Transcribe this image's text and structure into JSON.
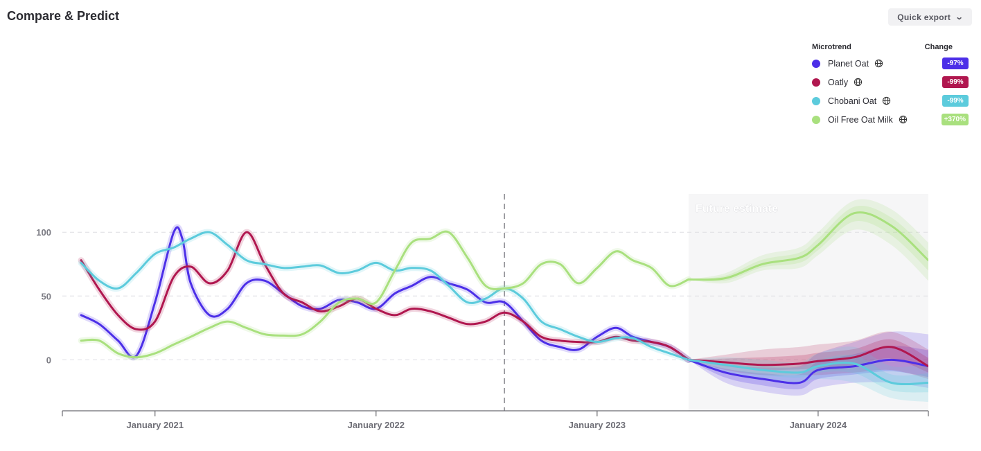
{
  "page": {
    "title": "Compare & Predict"
  },
  "toolbar": {
    "export_label": "Quick export"
  },
  "legend": {
    "microtrend_header": "Microtrend",
    "change_header": "Change",
    "items": [
      {
        "label": "Planet Oat",
        "change": "-97%",
        "color": "#4c2fe8"
      },
      {
        "label": "Oatly",
        "change": "-99%",
        "color": "#b0174f"
      },
      {
        "label": "Chobani Oat",
        "change": "-99%",
        "color": "#5ccbdc"
      },
      {
        "label": "Oil Free Oat Milk",
        "change": "+370%",
        "color": "#a9e07e"
      }
    ]
  },
  "chart_data": {
    "type": "line",
    "title": "",
    "xlabel": "",
    "ylabel": "",
    "xlim": [
      "2020-08-01",
      "2024-07-01"
    ],
    "ylim": [
      -40,
      130
    ],
    "yticks": [
      0,
      50,
      100
    ],
    "xtick_labels": [
      "January 2021",
      "January 2022",
      "January 2023",
      "January 2024"
    ],
    "xtick_dates": [
      "2021-01-01",
      "2022-01-01",
      "2023-01-01",
      "2024-01-01"
    ],
    "grid": "horizontal dashed",
    "divider_date": "2022-08-01",
    "forecast_start": "2023-06-01",
    "forecast_label": "Future estimate",
    "series": [
      {
        "name": "Planet Oat",
        "color": "#4c2fe8",
        "x": [
          "2020-09-01",
          "2020-10-01",
          "2020-11-01",
          "2020-12-01",
          "2021-01-01",
          "2021-02-01",
          "2021-02-15",
          "2021-03-01",
          "2021-04-01",
          "2021-05-01",
          "2021-06-01",
          "2021-07-01",
          "2021-08-01",
          "2021-09-01",
          "2021-10-01",
          "2021-11-01",
          "2021-12-01",
          "2022-01-01",
          "2022-02-01",
          "2022-03-01",
          "2022-04-01",
          "2022-05-01",
          "2022-06-01",
          "2022-07-01",
          "2022-08-01",
          "2022-09-01",
          "2022-10-01",
          "2022-11-01",
          "2022-12-01",
          "2023-01-01",
          "2023-02-01",
          "2023-03-01",
          "2023-04-01",
          "2023-05-01",
          "2023-06-01"
        ],
        "y": [
          35,
          28,
          15,
          3,
          45,
          100,
          95,
          60,
          35,
          40,
          60,
          62,
          52,
          42,
          40,
          47,
          45,
          40,
          52,
          58,
          65,
          60,
          55,
          45,
          45,
          30,
          15,
          10,
          8,
          18,
          25,
          18,
          14,
          10,
          0
        ],
        "forecast": {
          "x": [
            "2023-06-01",
            "2023-08-01",
            "2023-10-01",
            "2023-12-01",
            "2024-01-01",
            "2024-03-01",
            "2024-05-01",
            "2024-07-01"
          ],
          "y": [
            0,
            -10,
            -15,
            -18,
            -8,
            -5,
            0,
            -5
          ],
          "lower": [
            0,
            -18,
            -25,
            -28,
            -22,
            -18,
            -18,
            -22
          ],
          "upper": [
            0,
            -4,
            -6,
            -5,
            5,
            14,
            22,
            20
          ]
        }
      },
      {
        "name": "Oatly",
        "color": "#b0174f",
        "x": [
          "2020-09-01",
          "2020-10-01",
          "2020-11-01",
          "2020-12-01",
          "2021-01-01",
          "2021-02-01",
          "2021-03-01",
          "2021-04-01",
          "2021-05-01",
          "2021-06-01",
          "2021-07-01",
          "2021-08-01",
          "2021-09-01",
          "2021-10-01",
          "2021-11-01",
          "2021-12-01",
          "2022-01-01",
          "2022-02-01",
          "2022-03-01",
          "2022-04-01",
          "2022-05-01",
          "2022-06-01",
          "2022-07-01",
          "2022-08-01",
          "2022-09-01",
          "2022-10-01",
          "2022-11-01",
          "2022-12-01",
          "2023-01-01",
          "2023-02-01",
          "2023-03-01",
          "2023-04-01",
          "2023-05-01",
          "2023-06-01"
        ],
        "y": [
          78,
          55,
          35,
          24,
          30,
          65,
          73,
          60,
          70,
          100,
          75,
          52,
          45,
          38,
          42,
          48,
          40,
          35,
          40,
          38,
          33,
          28,
          30,
          37,
          30,
          18,
          15,
          14,
          14,
          18,
          15,
          14,
          10,
          0
        ],
        "forecast": {
          "x": [
            "2023-06-01",
            "2023-08-01",
            "2023-10-01",
            "2023-12-01",
            "2024-01-01",
            "2024-03-01",
            "2024-05-01",
            "2024-07-01"
          ],
          "y": [
            0,
            -2,
            -4,
            -3,
            -1,
            2,
            10,
            -5
          ],
          "lower": [
            0,
            -8,
            -12,
            -12,
            -12,
            -10,
            -8,
            -15
          ],
          "upper": [
            0,
            4,
            8,
            10,
            12,
            15,
            22,
            8
          ]
        }
      },
      {
        "name": "Chobani Oat",
        "color": "#5ccbdc",
        "x": [
          "2020-09-01",
          "2020-10-01",
          "2020-11-01",
          "2020-12-01",
          "2021-01-01",
          "2021-02-01",
          "2021-03-01",
          "2021-04-01",
          "2021-05-01",
          "2021-06-01",
          "2021-07-01",
          "2021-08-01",
          "2021-09-01",
          "2021-10-01",
          "2021-11-01",
          "2021-12-01",
          "2022-01-01",
          "2022-02-01",
          "2022-03-01",
          "2022-04-01",
          "2022-05-01",
          "2022-06-01",
          "2022-07-01",
          "2022-08-01",
          "2022-09-01",
          "2022-10-01",
          "2022-11-01",
          "2022-12-01",
          "2023-01-01",
          "2023-02-01",
          "2023-03-01",
          "2023-04-01",
          "2023-05-01",
          "2023-06-01"
        ],
        "y": [
          76,
          62,
          56,
          68,
          83,
          88,
          95,
          100,
          90,
          78,
          75,
          72,
          73,
          74,
          68,
          70,
          76,
          70,
          72,
          70,
          58,
          45,
          48,
          56,
          48,
          30,
          24,
          18,
          14,
          17,
          17,
          10,
          5,
          0
        ],
        "forecast": {
          "x": [
            "2023-06-01",
            "2023-08-01",
            "2023-10-01",
            "2023-12-01",
            "2024-01-01",
            "2024-03-01",
            "2024-05-01",
            "2024-07-01"
          ],
          "y": [
            0,
            -4,
            -8,
            -10,
            -5,
            -3,
            -18,
            -18
          ],
          "lower": [
            0,
            -10,
            -16,
            -18,
            -15,
            -18,
            -30,
            -33
          ],
          "upper": [
            0,
            2,
            0,
            -2,
            5,
            10,
            -5,
            -3
          ]
        }
      },
      {
        "name": "Oil Free Oat Milk",
        "color": "#a9e07e",
        "x": [
          "2020-09-01",
          "2020-10-01",
          "2020-11-01",
          "2020-12-01",
          "2021-01-01",
          "2021-02-01",
          "2021-03-01",
          "2021-04-01",
          "2021-05-01",
          "2021-06-01",
          "2021-07-01",
          "2021-08-01",
          "2021-09-01",
          "2021-10-01",
          "2021-11-01",
          "2021-12-01",
          "2022-01-01",
          "2022-02-01",
          "2022-03-01",
          "2022-04-01",
          "2022-05-01",
          "2022-06-01",
          "2022-07-01",
          "2022-08-01",
          "2022-09-01",
          "2022-10-01",
          "2022-11-01",
          "2022-12-01",
          "2023-01-01",
          "2023-02-01",
          "2023-03-01",
          "2023-04-01",
          "2023-05-01",
          "2023-06-01"
        ],
        "y": [
          15,
          15,
          5,
          2,
          5,
          12,
          18,
          25,
          30,
          25,
          20,
          19,
          20,
          30,
          45,
          48,
          45,
          70,
          92,
          95,
          100,
          80,
          58,
          56,
          60,
          75,
          75,
          60,
          72,
          85,
          78,
          72,
          58,
          63
        ],
        "forecast": {
          "x": [
            "2023-06-01",
            "2023-08-01",
            "2023-10-01",
            "2023-12-01",
            "2024-01-01",
            "2024-03-01",
            "2024-05-01",
            "2024-07-01"
          ],
          "y": [
            63,
            64,
            75,
            80,
            90,
            115,
            105,
            78
          ],
          "lower": [
            63,
            60,
            70,
            72,
            82,
            102,
            90,
            62
          ],
          "upper": [
            63,
            68,
            82,
            88,
            100,
            125,
            118,
            92
          ]
        }
      }
    ]
  }
}
